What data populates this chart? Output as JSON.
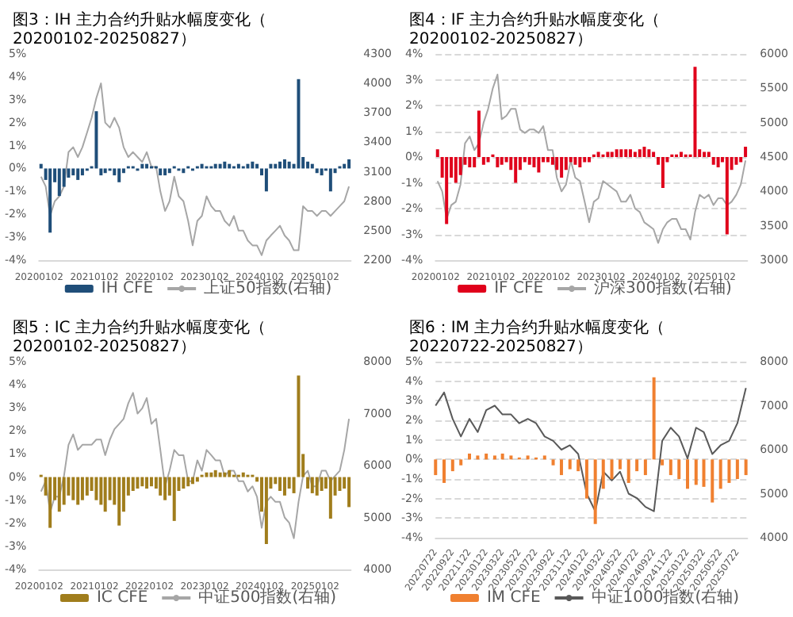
{
  "chart_data": [
    {
      "type": "bar",
      "title": "图3：IH 主力合约升贴水幅度变化（20200102-20250827）",
      "grid": false,
      "legend": "bottom",
      "marker": "none",
      "x": [
        "2020-01-15",
        "2020-02-15",
        "2020-03-15",
        "2020-04-15",
        "2020-05-15",
        "2020-06-15",
        "2020-07-15",
        "2020-08-15",
        "2020-09-15",
        "2020-10-15",
        "2020-11-15",
        "2020-12-15",
        "2021-01-15",
        "2021-02-15",
        "2021-03-15",
        "2021-04-15",
        "2021-05-15",
        "2021-06-15",
        "2021-07-15",
        "2021-08-15",
        "2021-09-15",
        "2021-10-15",
        "2021-11-15",
        "2021-12-15",
        "2022-01-15",
        "2022-02-15",
        "2022-03-15",
        "2022-04-15",
        "2022-05-15",
        "2022-06-15",
        "2022-07-15",
        "2022-08-15",
        "2022-09-15",
        "2022-10-15",
        "2022-11-15",
        "2022-12-15",
        "2023-01-15",
        "2023-02-15",
        "2023-03-15",
        "2023-04-15",
        "2023-05-15",
        "2023-06-15",
        "2023-07-15",
        "2023-08-15",
        "2023-09-15",
        "2023-10-15",
        "2023-11-15",
        "2023-12-15",
        "2024-01-15",
        "2024-02-15",
        "2024-03-15",
        "2024-04-15",
        "2024-05-15",
        "2024-06-15",
        "2024-07-15",
        "2024-08-15",
        "2024-09-15",
        "2024-10-15",
        "2024-11-15",
        "2024-12-15",
        "2025-01-15",
        "2025-02-15",
        "2025-03-15",
        "2025-04-15",
        "2025-05-15",
        "2025-06-15",
        "2025-07-15",
        "2025-08-15"
      ],
      "xlim": [
        "2020-01-02",
        "2025-08-27"
      ],
      "xticks": [
        {
          "value": "2020-01-02",
          "label": "20200102"
        },
        {
          "value": "2021-01-02",
          "label": "20210102"
        },
        {
          "value": "2022-01-02",
          "label": "20220102"
        },
        {
          "value": "2023-01-02",
          "label": "20230102"
        },
        {
          "value": "2024-01-02",
          "label": "20240102"
        },
        {
          "value": "2025-01-02",
          "label": "20250102"
        }
      ],
      "ylim": [
        -4,
        5
      ],
      "yticks": [
        {
          "value": -4,
          "label": "-4%"
        },
        {
          "value": -3,
          "label": "-3%"
        },
        {
          "value": -2,
          "label": "-2%"
        },
        {
          "value": -1,
          "label": "-1%"
        },
        {
          "value": 0,
          "label": "0%"
        },
        {
          "value": 1,
          "label": "1%"
        },
        {
          "value": 2,
          "label": "2%"
        },
        {
          "value": 3,
          "label": "3%"
        },
        {
          "value": 4,
          "label": "4%"
        },
        {
          "value": 5,
          "label": "5%"
        }
      ],
      "y2lim": [
        2200,
        4300
      ],
      "y2ticks": [
        2200,
        2500,
        2800,
        3100,
        3400,
        3700,
        4000,
        4300
      ],
      "series": [
        {
          "name": "IH CFE",
          "color": "#1f4e79",
          "values": [
            0.2,
            -0.5,
            -2.8,
            -0.6,
            -1.2,
            -0.8,
            -0.4,
            -0.3,
            -0.5,
            -0.3,
            -0.1,
            0.1,
            2.5,
            -0.3,
            -0.2,
            -0.1,
            -0.3,
            -0.6,
            -0.2,
            0.1,
            0.1,
            -0.1,
            0.2,
            0.2,
            0.1,
            0.1,
            -0.3,
            -0.3,
            -0.2,
            0.1,
            -0.1,
            -0.2,
            0.1,
            -0.1,
            0.1,
            0.2,
            0.1,
            0.1,
            0.2,
            0.2,
            0.3,
            0.2,
            0.1,
            0.2,
            0.1,
            0.2,
            0.3,
            0.2,
            -0.3,
            -1.0,
            0.2,
            0.2,
            0.3,
            0.4,
            0.3,
            0.2,
            3.9,
            0.5,
            0.3,
            0.2,
            -0.2,
            -0.3,
            -0.1,
            -1.0,
            -0.2,
            0.1,
            0.2,
            0.4
          ]
        },
        {
          "name": "上证50指数(右轴)",
          "type": "line",
          "axis": "y2",
          "color": "#a6a6a6",
          "values": [
            3050,
            2950,
            2650,
            2800,
            2850,
            2950,
            3300,
            3350,
            3250,
            3350,
            3500,
            3650,
            3850,
            4000,
            3600,
            3550,
            3650,
            3550,
            3350,
            3250,
            3300,
            3250,
            3200,
            3300,
            3150,
            3150,
            2900,
            2700,
            2800,
            3050,
            2850,
            2800,
            2600,
            2350,
            2600,
            2650,
            2850,
            2750,
            2700,
            2700,
            2600,
            2550,
            2650,
            2500,
            2500,
            2400,
            2350,
            2350,
            2250,
            2400,
            2450,
            2500,
            2550,
            2450,
            2400,
            2300,
            2300,
            2750,
            2700,
            2700,
            2650,
            2700,
            2700,
            2650,
            2700,
            2750,
            2800,
            2950
          ]
        }
      ]
    },
    {
      "type": "bar",
      "title": "图4：IF 主力合约升贴水幅度变化（20200102-20250827）",
      "grid": "y",
      "legend": "bottom",
      "marker": "none",
      "x": [
        "2020-01-15",
        "2020-02-15",
        "2020-03-15",
        "2020-04-15",
        "2020-05-15",
        "2020-06-15",
        "2020-07-15",
        "2020-08-15",
        "2020-09-15",
        "2020-10-15",
        "2020-11-15",
        "2020-12-15",
        "2021-01-15",
        "2021-02-15",
        "2021-03-15",
        "2021-04-15",
        "2021-05-15",
        "2021-06-15",
        "2021-07-15",
        "2021-08-15",
        "2021-09-15",
        "2021-10-15",
        "2021-11-15",
        "2021-12-15",
        "2022-01-15",
        "2022-02-15",
        "2022-03-15",
        "2022-04-15",
        "2022-05-15",
        "2022-06-15",
        "2022-07-15",
        "2022-08-15",
        "2022-09-15",
        "2022-10-15",
        "2022-11-15",
        "2022-12-15",
        "2023-01-15",
        "2023-02-15",
        "2023-03-15",
        "2023-04-15",
        "2023-05-15",
        "2023-06-15",
        "2023-07-15",
        "2023-08-15",
        "2023-09-15",
        "2023-10-15",
        "2023-11-15",
        "2023-12-15",
        "2024-01-15",
        "2024-02-15",
        "2024-03-15",
        "2024-04-15",
        "2024-05-15",
        "2024-06-15",
        "2024-07-15",
        "2024-08-15",
        "2024-09-15",
        "2024-10-15",
        "2024-11-15",
        "2024-12-15",
        "2025-01-15",
        "2025-02-15",
        "2025-03-15",
        "2025-04-15",
        "2025-05-15",
        "2025-06-15",
        "2025-07-15",
        "2025-08-15"
      ],
      "xlim": [
        "2020-01-02",
        "2025-08-27"
      ],
      "xticks": [
        {
          "value": "2020-01-02",
          "label": "20200102"
        },
        {
          "value": "2021-01-02",
          "label": "20210102"
        },
        {
          "value": "2022-01-02",
          "label": "20220102"
        },
        {
          "value": "2023-01-02",
          "label": "20230102"
        },
        {
          "value": "2024-01-02",
          "label": "20240102"
        },
        {
          "value": "2025-01-02",
          "label": "20250102"
        }
      ],
      "ylim": [
        -4,
        4
      ],
      "yticks": [
        {
          "value": -4,
          "label": "-4%"
        },
        {
          "value": -3,
          "label": "-3%"
        },
        {
          "value": -2,
          "label": "-2%"
        },
        {
          "value": -1,
          "label": "-1%"
        },
        {
          "value": 0,
          "label": "0%"
        },
        {
          "value": 1,
          "label": "1%"
        },
        {
          "value": 2,
          "label": "2%"
        },
        {
          "value": 3,
          "label": "3%"
        },
        {
          "value": 4,
          "label": "4%"
        }
      ],
      "y2lim": [
        3000,
        6000
      ],
      "y2ticks": [
        3000,
        3500,
        4000,
        4500,
        5000,
        5500,
        6000
      ],
      "series": [
        {
          "name": "IF CFE",
          "color": "#e0001b",
          "values": [
            0.3,
            -0.8,
            -2.6,
            -0.8,
            -1.0,
            -0.7,
            -0.3,
            -0.4,
            -0.4,
            1.8,
            -0.3,
            -0.2,
            0.1,
            -0.4,
            -0.3,
            -0.2,
            -0.5,
            -1.0,
            -0.5,
            -0.2,
            -0.3,
            -0.4,
            -0.6,
            -0.2,
            -0.2,
            -0.3,
            -0.5,
            -0.8,
            -0.5,
            -0.2,
            -0.3,
            -0.4,
            -0.2,
            -0.2,
            0.1,
            0.2,
            0.1,
            0.2,
            0.2,
            0.3,
            0.3,
            0.3,
            0.3,
            0.2,
            0.3,
            0.4,
            0.3,
            0.2,
            -0.3,
            -1.2,
            -0.2,
            0.1,
            0.1,
            0.2,
            0.1,
            0.1,
            3.5,
            0.3,
            0.2,
            0.2,
            -0.3,
            -0.4,
            -0.2,
            -3.0,
            -0.5,
            -0.3,
            -0.2,
            0.4
          ]
        },
        {
          "name": "沪深300指数(右轴)",
          "type": "line",
          "axis": "y2",
          "color": "#a6a6a6",
          "values": [
            4150,
            4000,
            3600,
            3800,
            3850,
            4100,
            4700,
            4800,
            4600,
            4700,
            5000,
            5200,
            5500,
            5700,
            5050,
            5100,
            5200,
            5200,
            4900,
            4850,
            4900,
            4900,
            4850,
            4950,
            4600,
            4600,
            4200,
            4000,
            4100,
            4450,
            4200,
            4150,
            3850,
            3550,
            3850,
            3900,
            4150,
            4100,
            4050,
            4000,
            3850,
            3850,
            3950,
            3750,
            3700,
            3550,
            3500,
            3450,
            3250,
            3450,
            3550,
            3600,
            3600,
            3450,
            3450,
            3300,
            3700,
            3950,
            3900,
            3950,
            3800,
            3900,
            3900,
            3800,
            3850,
            3950,
            4100,
            4450
          ]
        }
      ]
    },
    {
      "type": "bar",
      "title": "图5：IC 主力合约升贴水幅度变化（20200102-20250827）",
      "grid": false,
      "legend": "bottom",
      "marker": "none",
      "x": [
        "2020-01-15",
        "2020-02-15",
        "2020-03-15",
        "2020-04-15",
        "2020-05-15",
        "2020-06-15",
        "2020-07-15",
        "2020-08-15",
        "2020-09-15",
        "2020-10-15",
        "2020-11-15",
        "2020-12-15",
        "2021-01-15",
        "2021-02-15",
        "2021-03-15",
        "2021-04-15",
        "2021-05-15",
        "2021-06-15",
        "2021-07-15",
        "2021-08-15",
        "2021-09-15",
        "2021-10-15",
        "2021-11-15",
        "2021-12-15",
        "2022-01-15",
        "2022-02-15",
        "2022-03-15",
        "2022-04-15",
        "2022-05-15",
        "2022-06-15",
        "2022-07-15",
        "2022-08-15",
        "2022-09-15",
        "2022-10-15",
        "2022-11-15",
        "2022-12-15",
        "2023-01-15",
        "2023-02-15",
        "2023-03-15",
        "2023-04-15",
        "2023-05-15",
        "2023-06-15",
        "2023-07-15",
        "2023-08-15",
        "2023-09-15",
        "2023-10-15",
        "2023-11-15",
        "2023-12-15",
        "2024-01-15",
        "2024-02-15",
        "2024-03-15",
        "2024-04-15",
        "2024-05-15",
        "2024-06-15",
        "2024-07-15",
        "2024-08-15",
        "2024-09-15",
        "2024-10-15",
        "2024-11-15",
        "2024-12-15",
        "2025-01-15",
        "2025-02-15",
        "2025-03-15",
        "2025-04-15",
        "2025-05-15",
        "2025-06-15",
        "2025-07-15",
        "2025-08-15"
      ],
      "xlim": [
        "2020-01-02",
        "2025-08-27"
      ],
      "xticks": [
        {
          "value": "2020-01-02",
          "label": "20200102"
        },
        {
          "value": "2021-01-02",
          "label": "20210102"
        },
        {
          "value": "2022-01-02",
          "label": "20220102"
        },
        {
          "value": "2023-01-02",
          "label": "20230102"
        },
        {
          "value": "2024-01-02",
          "label": "20240102"
        },
        {
          "value": "2025-01-02",
          "label": "20250102"
        }
      ],
      "ylim": [
        -4,
        5
      ],
      "yticks": [
        {
          "value": -4,
          "label": "-4%"
        },
        {
          "value": -3,
          "label": "-3%"
        },
        {
          "value": -2,
          "label": "-2%"
        },
        {
          "value": -1,
          "label": "-1%"
        },
        {
          "value": 0,
          "label": "0%"
        },
        {
          "value": 1,
          "label": "1%"
        },
        {
          "value": 2,
          "label": "2%"
        },
        {
          "value": 3,
          "label": "3%"
        },
        {
          "value": 4,
          "label": "4%"
        },
        {
          "value": 5,
          "label": "5%"
        }
      ],
      "y2lim": [
        4000,
        8000
      ],
      "y2ticks": [
        4000,
        5000,
        6000,
        7000,
        8000
      ],
      "series": [
        {
          "name": "IC CFE",
          "color": "#a07d1c",
          "values": [
            0.1,
            -0.8,
            -2.2,
            -1.0,
            -1.5,
            -1.2,
            -0.8,
            -1.0,
            -1.2,
            -1.0,
            -0.8,
            -0.6,
            -1.0,
            -1.2,
            -1.5,
            -1.0,
            -1.2,
            -2.1,
            -1.5,
            -0.8,
            -0.6,
            -0.5,
            -0.4,
            -0.5,
            -0.4,
            -0.5,
            -0.8,
            -1.0,
            -0.8,
            -1.9,
            -0.6,
            -0.5,
            -0.4,
            -0.3,
            -0.2,
            0.1,
            0.2,
            0.2,
            0.3,
            0.2,
            0.2,
            0.3,
            0.1,
            0.1,
            0.2,
            0.1,
            0.1,
            -0.2,
            -1.5,
            -2.9,
            -0.5,
            -0.3,
            -0.6,
            -0.8,
            -0.5,
            -0.7,
            4.4,
            1.0,
            -0.5,
            -0.7,
            -0.8,
            -0.6,
            -0.5,
            -1.8,
            -0.8,
            -0.6,
            -0.5,
            -1.3
          ]
        },
        {
          "name": "中证500指数(右轴)",
          "type": "line",
          "axis": "y2",
          "color": "#a6a6a6",
          "values": [
            5500,
            5700,
            5100,
            5400,
            5400,
            5800,
            6400,
            6600,
            6300,
            6400,
            6400,
            6400,
            6500,
            6500,
            6200,
            6500,
            6700,
            6800,
            6900,
            7200,
            7400,
            7000,
            7100,
            7300,
            6800,
            6900,
            6300,
            5600,
            5900,
            6300,
            6200,
            6200,
            5700,
            5700,
            6100,
            5900,
            6300,
            6200,
            6100,
            6100,
            5800,
            5900,
            5900,
            5700,
            5700,
            5500,
            5600,
            5400,
            4800,
            5300,
            5400,
            5300,
            5300,
            5000,
            4900,
            4600,
            5300,
            5800,
            5900,
            5600,
            5600,
            5900,
            5900,
            5700,
            5800,
            5900,
            6300,
            6900
          ]
        }
      ]
    },
    {
      "type": "bar",
      "title": "图6：IM 主力合约升贴水幅度变化（20220722-20250827）",
      "grid": "y",
      "legend": "bottom",
      "marker": "none",
      "x": [
        "2022-07-22",
        "2022-08-22",
        "2022-09-22",
        "2022-10-22",
        "2022-11-22",
        "2022-12-22",
        "2023-01-22",
        "2023-02-22",
        "2023-03-22",
        "2023-04-22",
        "2023-05-22",
        "2023-06-22",
        "2023-07-22",
        "2023-08-22",
        "2023-09-22",
        "2023-10-22",
        "2023-11-22",
        "2023-12-22",
        "2024-01-22",
        "2024-02-22",
        "2024-03-22",
        "2024-04-22",
        "2024-05-22",
        "2024-06-22",
        "2024-07-22",
        "2024-08-22",
        "2024-09-22",
        "2024-10-22",
        "2024-11-22",
        "2024-12-22",
        "2025-01-22",
        "2025-02-22",
        "2025-03-22",
        "2025-04-22",
        "2025-05-22",
        "2025-06-22",
        "2025-07-22",
        "2025-08-22"
      ],
      "xlim": [
        "2022-07-22",
        "2025-08-27"
      ],
      "xticks": [
        {
          "value": "2022-07-22",
          "label": "20220722"
        },
        {
          "value": "2022-09-22",
          "label": "20220922"
        },
        {
          "value": "2022-11-22",
          "label": "20221122"
        },
        {
          "value": "2023-01-22",
          "label": "20230122"
        },
        {
          "value": "2023-03-22",
          "label": "20230322"
        },
        {
          "value": "2023-05-22",
          "label": "20230522"
        },
        {
          "value": "2023-07-22",
          "label": "20230722"
        },
        {
          "value": "2023-09-22",
          "label": "20230922"
        },
        {
          "value": "2023-11-22",
          "label": "20231122"
        },
        {
          "value": "2024-01-22",
          "label": "20240122"
        },
        {
          "value": "2024-03-22",
          "label": "20240322"
        },
        {
          "value": "2024-05-22",
          "label": "20240522"
        },
        {
          "value": "2024-07-22",
          "label": "20240722"
        },
        {
          "value": "2024-09-22",
          "label": "20240922"
        },
        {
          "value": "2024-11-22",
          "label": "20241122"
        },
        {
          "value": "2025-01-22",
          "label": "20250122"
        },
        {
          "value": "2025-03-22",
          "label": "20250322"
        },
        {
          "value": "2025-05-22",
          "label": "20250522"
        },
        {
          "value": "2025-07-22",
          "label": "20250722"
        }
      ],
      "ylim": [
        -4,
        5
      ],
      "yticks": [
        {
          "value": -4,
          "label": "-4%"
        },
        {
          "value": -3,
          "label": "-3%"
        },
        {
          "value": -2,
          "label": "-2%"
        },
        {
          "value": -1,
          "label": "-1%"
        },
        {
          "value": 0,
          "label": "0%"
        },
        {
          "value": 1,
          "label": "1%"
        },
        {
          "value": 2,
          "label": "2%"
        },
        {
          "value": 3,
          "label": "3%"
        },
        {
          "value": 4,
          "label": "4%"
        },
        {
          "value": 5,
          "label": "5%"
        }
      ],
      "y2lim": [
        4000,
        8000
      ],
      "y2ticks": [
        4000,
        5000,
        6000,
        7000,
        8000
      ],
      "series": [
        {
          "name": "IM CFE",
          "color": "#f08030",
          "values": [
            -0.8,
            -1.2,
            -0.6,
            -0.3,
            0.3,
            0.2,
            0.3,
            0.2,
            0.3,
            0.2,
            0.1,
            0.2,
            0.1,
            0.2,
            -0.3,
            -0.8,
            -0.5,
            -0.6,
            -2.0,
            -3.3,
            -1.5,
            -1.0,
            -0.5,
            -1.2,
            -0.6,
            -0.8,
            4.2,
            -0.3,
            -0.8,
            -1.0,
            -1.5,
            -1.3,
            -1.4,
            -2.2,
            -1.5,
            -1.2,
            -1.0,
            -0.8
          ]
        },
        {
          "name": "中证1000指数(右轴)",
          "type": "line",
          "axis": "y2",
          "color": "#595959",
          "values": [
            7000,
            7300,
            6700,
            6300,
            6700,
            6400,
            6900,
            7000,
            6800,
            6800,
            6600,
            6700,
            6600,
            6300,
            6200,
            6000,
            6100,
            5900,
            5000,
            4600,
            5500,
            5300,
            5500,
            5000,
            4900,
            4700,
            4600,
            6200,
            6500,
            6300,
            5800,
            6500,
            6400,
            5900,
            6100,
            6200,
            6600,
            7400
          ]
        }
      ]
    }
  ]
}
